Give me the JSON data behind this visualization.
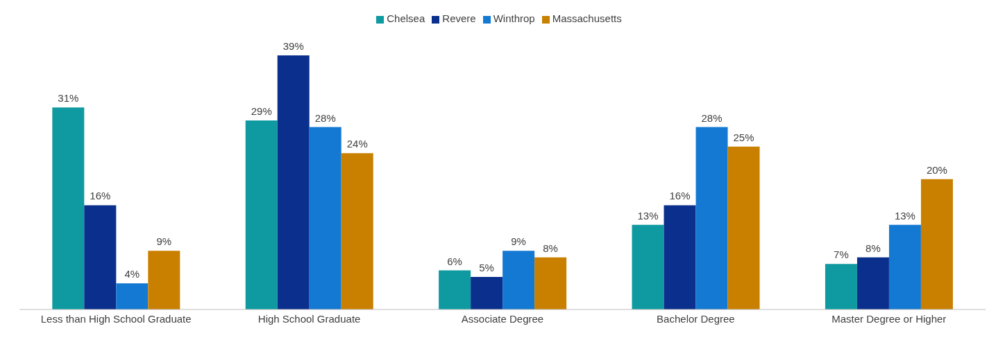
{
  "chart_data": {
    "type": "bar",
    "categories": [
      "Less than High School Graduate",
      "High School Graduate",
      "Associate Degree",
      "Bachelor Degree",
      "Master Degree or Higher"
    ],
    "series": [
      {
        "name": "Chelsea",
        "color": "#0e9aa0",
        "values": [
          31,
          29,
          6,
          13,
          7
        ],
        "value_labels": [
          "31%",
          "29%",
          "6%",
          "13%",
          "7%"
        ]
      },
      {
        "name": "Revere",
        "color": "#0a2f8c",
        "values": [
          16,
          39,
          5,
          16,
          8
        ],
        "value_labels": [
          "16%",
          "39%",
          "5%",
          "16%",
          "8%"
        ]
      },
      {
        "name": "Winthrop",
        "color": "#1479d2",
        "values": [
          4,
          28,
          9,
          28,
          13
        ],
        "value_labels": [
          "4%",
          "28%",
          "9%",
          "28%",
          "13%"
        ]
      },
      {
        "name": "Massachusetts",
        "color": "#c98000",
        "values": [
          9,
          24,
          8,
          25,
          20
        ],
        "value_labels": [
          "9%",
          "24%",
          "8%",
          "25%",
          "20%"
        ]
      }
    ],
    "legend": "top",
    "grid": false
  }
}
